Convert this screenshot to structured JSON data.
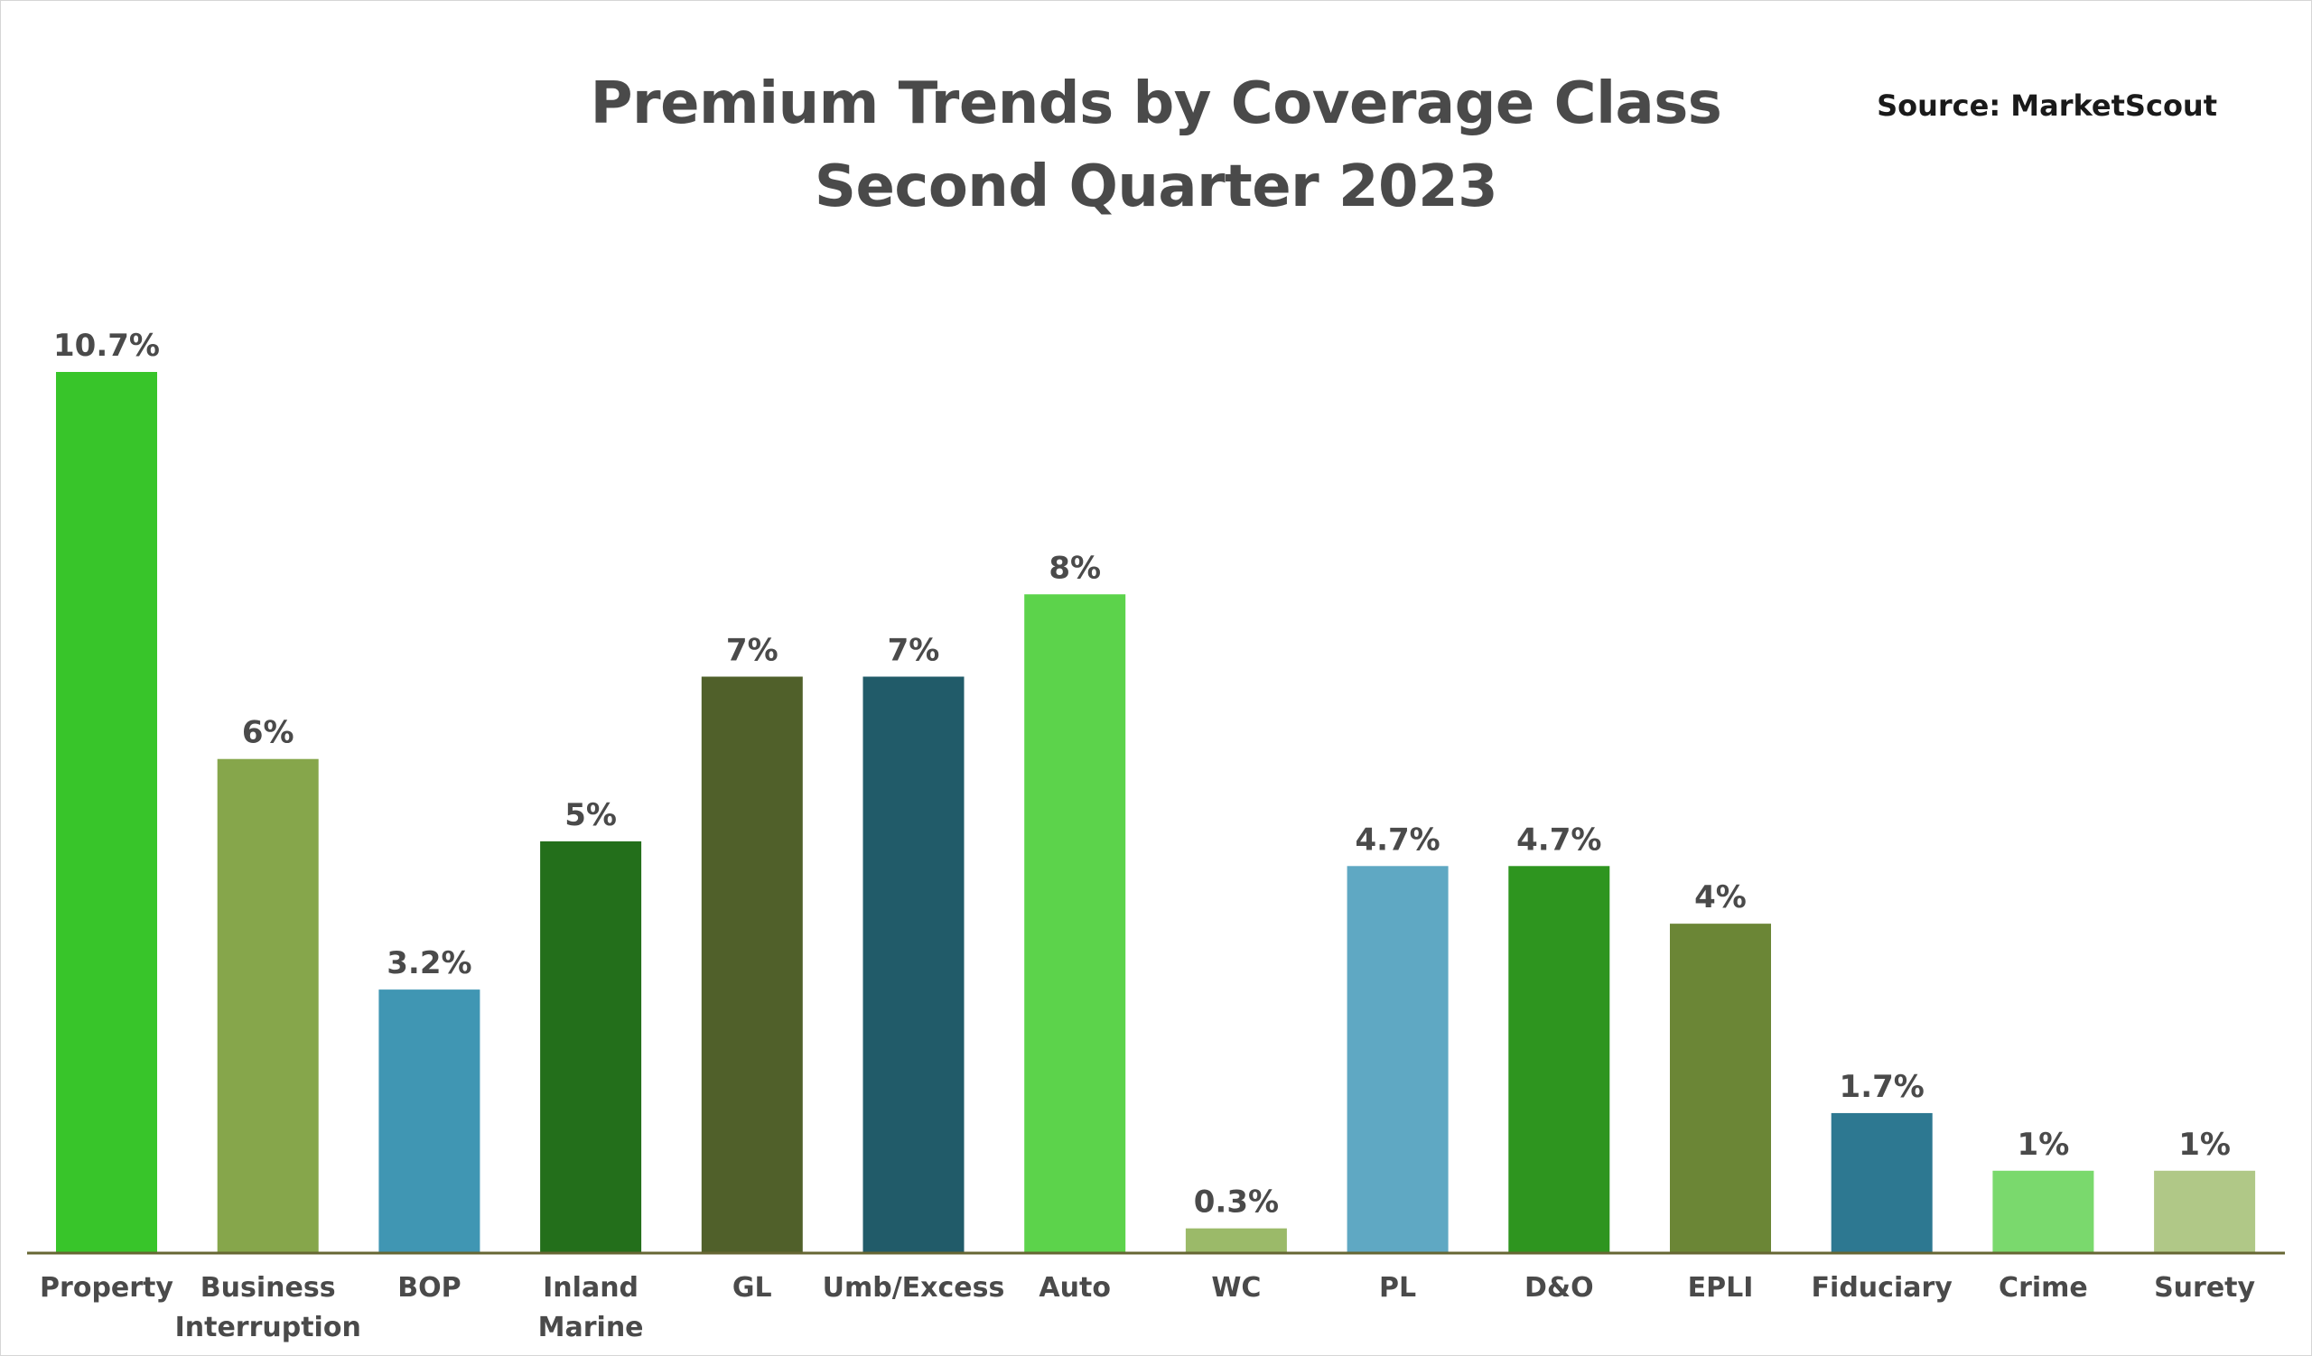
{
  "chart_data": {
    "type": "bar",
    "title": "Premium Trends by Coverage Class",
    "subtitle": "Second Quarter 2023",
    "source": "Source: MarketScout",
    "xlabel": "",
    "ylabel": "",
    "ylim": [
      0,
      10.7
    ],
    "grid": false,
    "categories": [
      [
        "Property"
      ],
      [
        "Business",
        "Interruption"
      ],
      [
        "BOP"
      ],
      [
        "Inland",
        "Marine"
      ],
      [
        "GL"
      ],
      [
        "Umb/Excess"
      ],
      [
        "Auto"
      ],
      [
        "WC"
      ],
      [
        "PL"
      ],
      [
        "D&O"
      ],
      [
        "EPLI"
      ],
      [
        "Fiduciary"
      ],
      [
        "Crime"
      ],
      [
        "Surety"
      ]
    ],
    "values": [
      10.7,
      6,
      3.2,
      5,
      7,
      7,
      8,
      0.3,
      4.7,
      4.7,
      4,
      1.7,
      1,
      1
    ],
    "labels": [
      "10.7%",
      "6%",
      "3.2%",
      "5%",
      "7%",
      "7%",
      "8%",
      "0.3%",
      "4.7%",
      "4.7%",
      "4%",
      "1.7%",
      "1%",
      "1%"
    ],
    "colors": [
      "#38c52a",
      "#86a64b",
      "#4096b3",
      "#236f1b",
      "#50602a",
      "#215b69",
      "#5cd34b",
      "#9bba69",
      "#5fa8c3",
      "#2e951f",
      "#6b8636",
      "#2d7891",
      "#7ad96d",
      "#b0c887"
    ],
    "axis_color": "#666633"
  }
}
